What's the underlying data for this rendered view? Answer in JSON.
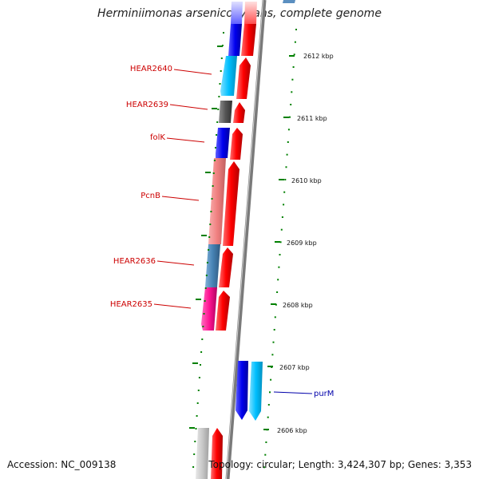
{
  "header": {
    "title": "Herminiimonas arsenicoxydans, complete genome"
  },
  "footer": {
    "accession": "Accession: NC_009138",
    "summary": "Topology: circular; Length: 3,424,307 bp; Genes: 3,353"
  },
  "colors": {
    "backbone": "#808080",
    "forward_strand": "#ff0000",
    "tick_green": "#008000",
    "label_red": "#cc0000",
    "label_blue": "#0000aa"
  },
  "kbp_markers": [
    "2612 kbp",
    "2611 kbp",
    "2610 kbp",
    "2609 kbp",
    "2608 kbp",
    "2607 kbp",
    "2606 kbp"
  ],
  "genes": [
    {
      "name": "HEAR2640",
      "color": "#00bfff",
      "strand": "-"
    },
    {
      "name": "HEAR2639",
      "color": "#555555",
      "strand": "-"
    },
    {
      "name": "folK",
      "color": "#0000ee",
      "strand": "-"
    },
    {
      "name": "PcnB",
      "color": "#f08080",
      "strand": "-"
    },
    {
      "name": "HEAR2636",
      "color": "#4682b4",
      "strand": "-"
    },
    {
      "name": "HEAR2635",
      "color": "#ff1493",
      "strand": "-"
    },
    {
      "name": "purM",
      "color": "#00bfff",
      "strand": "+"
    }
  ]
}
